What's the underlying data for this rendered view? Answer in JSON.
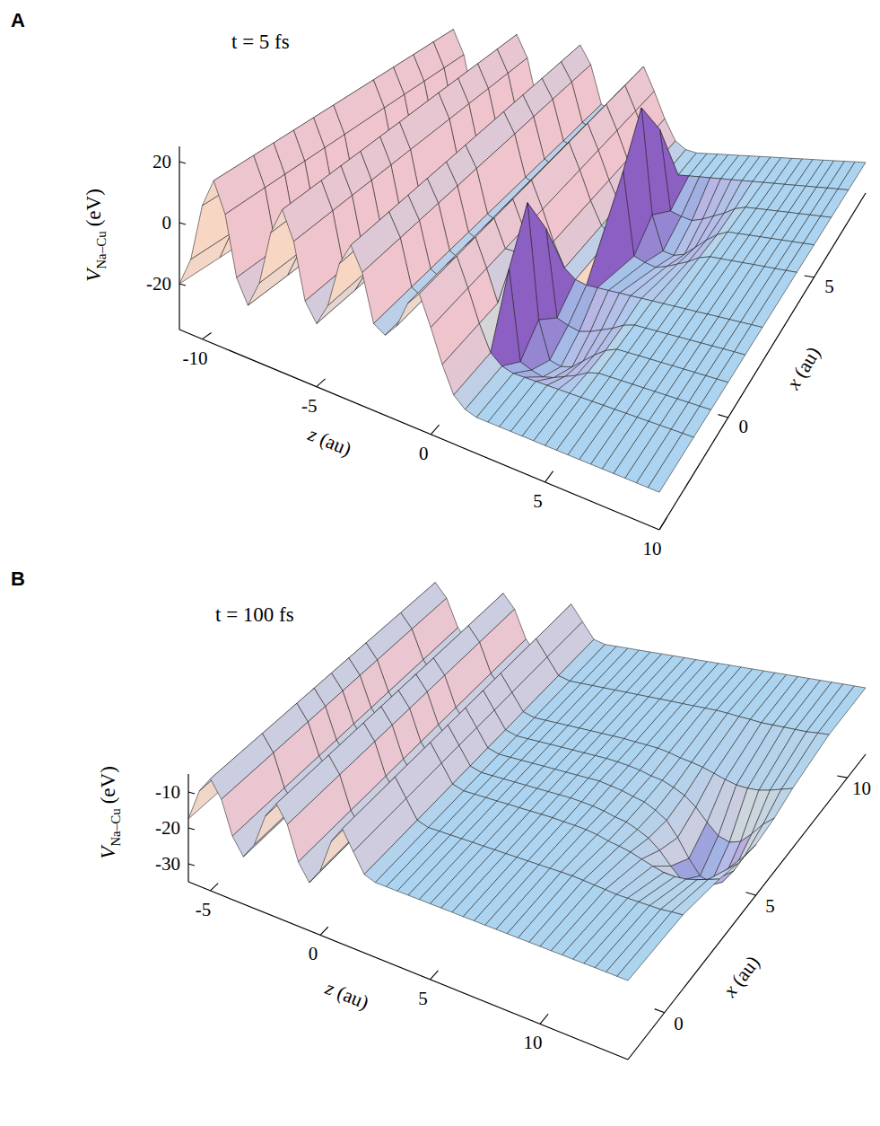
{
  "chart_data": [
    {
      "type": "surface",
      "panel": "A",
      "annotation": "t = 5 fs",
      "z_label": "z (au)",
      "x_label": "x (au)",
      "y_label": "V",
      "y_label_subscript": "Na–Cu",
      "y_label_unit": "(eV)",
      "zlim": [
        -11,
        10
      ],
      "zticks": [
        -10,
        -5,
        0,
        5,
        10
      ],
      "xlim": [
        -4,
        8
      ],
      "xticks": [
        0,
        5
      ],
      "ylim": [
        -35,
        25
      ],
      "yticks": [
        -20,
        0,
        20
      ],
      "z": [
        -11,
        -10.5,
        -10,
        -9.5,
        -9,
        -8.5,
        -8,
        -7.5,
        -7,
        -6.5,
        -6,
        -5.5,
        -5,
        -4.5,
        -4,
        -3.5,
        -3,
        -2.5,
        -2,
        -1.5,
        -1,
        -0.5,
        0,
        0.5,
        1,
        1.5,
        2,
        2.5,
        3,
        3.5,
        4,
        4.5,
        5,
        5.5,
        6,
        6.5,
        7,
        7.5,
        8,
        8.5,
        9,
        9.5,
        10
      ],
      "x": [
        -4,
        -2,
        -1,
        0,
        1,
        2,
        4,
        5,
        6,
        7,
        8
      ],
      "values": [
        [
          -20,
          -10.5,
          8.5,
          18,
          8.5,
          -10.5,
          -18,
          -9.3,
          8.3,
          17,
          8.3,
          -9.3,
          -15,
          -7.8,
          6.8,
          14,
          6.8,
          -7.8,
          -10,
          -5.8,
          2.8,
          7,
          -2,
          -12,
          -20,
          -23,
          -24,
          -24,
          -24,
          -24,
          -24,
          -24,
          -24,
          -24,
          -24,
          -24,
          -24,
          -24,
          -24,
          -24,
          -24,
          -24,
          -24
        ],
        [
          -20,
          -10.5,
          8.5,
          18,
          8.5,
          -10.5,
          -18,
          -9.3,
          8.3,
          17,
          8.3,
          -9.3,
          -15,
          -7.8,
          6.8,
          14,
          6.8,
          -7.8,
          -10,
          -5.8,
          2.8,
          7,
          -2,
          -12,
          -20,
          -23,
          -24,
          -24,
          -24,
          -24,
          -24,
          -24,
          -24,
          -24,
          -24,
          -24,
          -24,
          -24,
          -24,
          -24,
          -24,
          -24,
          -24
        ],
        [
          -20,
          -10.5,
          8.5,
          18,
          8.5,
          -10.5,
          -18,
          -9.3,
          8.3,
          17,
          8.3,
          -9.3,
          -15,
          -7.8,
          6.8,
          14,
          6.8,
          -7.8,
          -10,
          -5.8,
          2.8,
          7,
          -2,
          -12,
          0,
          -28.5,
          -30,
          -31,
          -30,
          -28.5,
          -27,
          -25,
          -24,
          -24,
          -24,
          -24,
          -24,
          -24,
          -24,
          -24,
          -24,
          -24,
          -24
        ],
        [
          -20,
          -10.5,
          8.5,
          18,
          8.5,
          -10.5,
          -18,
          -9.3,
          8.3,
          17,
          8.3,
          -9.3,
          -15,
          -7.8,
          6.8,
          14,
          6.8,
          -7.8,
          -10,
          -5.8,
          2.8,
          7,
          -2,
          -2,
          15,
          -22,
          -34,
          -35,
          -34,
          -31,
          -28,
          -25.5,
          -24,
          -24,
          -24,
          -24,
          -24,
          -24,
          -24,
          -24,
          -24,
          -24,
          -24
        ],
        [
          -20,
          -10.5,
          8.5,
          18,
          8.5,
          -10.5,
          -18,
          -9.3,
          8.3,
          17,
          8.3,
          -9.3,
          -15,
          -7.8,
          6.8,
          14,
          6.8,
          -7.8,
          -10,
          -5.8,
          2.8,
          7,
          -2,
          -12,
          0,
          -28.5,
          -30,
          -31,
          -30,
          -28.5,
          -27,
          -25,
          -24,
          -24,
          -24,
          -24,
          -24,
          -24,
          -24,
          -24,
          -24,
          -24,
          -24
        ],
        [
          -20,
          -10.5,
          8.5,
          18,
          8.5,
          -10.5,
          -18,
          -9.3,
          8.3,
          17,
          8.3,
          -9.3,
          -15,
          -7.8,
          6.8,
          14,
          6.8,
          -7.8,
          -10,
          -5.8,
          2.8,
          7,
          -2,
          -12,
          -20,
          -23,
          -24,
          -24,
          -24,
          -24,
          -24,
          -24,
          -24,
          -24,
          -24,
          -24,
          -24,
          -24,
          -24,
          -24,
          -24,
          -24,
          -24
        ],
        [
          -20,
          -10.5,
          8.5,
          18,
          8.5,
          -10.5,
          -18,
          -9.3,
          8.3,
          17,
          8.3,
          -9.3,
          -15,
          -7.8,
          6.8,
          14,
          6.8,
          -7.8,
          -10,
          -5.8,
          2.8,
          7,
          -2,
          -12,
          -20,
          -23,
          0,
          -28.5,
          -30,
          -31,
          -30,
          -28.5,
          -27,
          -25,
          -24,
          -24,
          -24,
          -24,
          -24,
          -24,
          -24,
          -24,
          -24
        ],
        [
          -20,
          -10.5,
          8.5,
          18,
          8.5,
          -10.5,
          -18,
          -9.3,
          8.3,
          17,
          8.3,
          -9.3,
          -15,
          -7.8,
          6.8,
          14,
          6.8,
          -7.8,
          -10,
          -5.8,
          2.8,
          7,
          -2,
          -12,
          -20,
          -15,
          15,
          -22,
          -34,
          -35,
          -34,
          -31,
          -28,
          -25.5,
          -24,
          -24,
          -24,
          -24,
          -24,
          -24,
          -24,
          -24,
          -24
        ],
        [
          -20,
          -10.5,
          8.5,
          18,
          8.5,
          -10.5,
          -18,
          -9.3,
          8.3,
          17,
          8.3,
          -9.3,
          -15,
          -7.8,
          6.8,
          14,
          6.8,
          -7.8,
          -10,
          -5.8,
          2.8,
          7,
          -2,
          -12,
          -20,
          -23,
          0,
          -28.5,
          -30,
          -31,
          -30,
          -28.5,
          -27,
          -25,
          -24,
          -24,
          -24,
          -24,
          -24,
          -24,
          -24,
          -24,
          -24
        ],
        [
          -20,
          -10.5,
          8.5,
          18,
          8.5,
          -10.5,
          -18,
          -9.3,
          8.3,
          17,
          8.3,
          -9.3,
          -15,
          -7.8,
          6.8,
          14,
          6.8,
          -7.8,
          -10,
          -5.8,
          2.8,
          7,
          -2,
          -12,
          -20,
          -23,
          -24,
          -24,
          -24,
          -24,
          -24,
          -24,
          -24,
          -24,
          -24,
          -24,
          -24,
          -24,
          -24,
          -24,
          -24,
          -24,
          -24
        ],
        [
          -20,
          -10.5,
          8.5,
          18,
          8.5,
          -10.5,
          -18,
          -9.3,
          8.3,
          17,
          8.3,
          -9.3,
          -15,
          -7.8,
          6.8,
          14,
          6.8,
          -7.8,
          -10,
          -5.8,
          2.8,
          7,
          -2,
          -12,
          -20,
          -23,
          -24,
          -24,
          -24,
          -24,
          -24,
          -24,
          -24,
          -24,
          -24,
          -24,
          -24,
          -24,
          -24,
          -24,
          -24,
          -24,
          -24
        ]
      ]
    },
    {
      "type": "surface",
      "panel": "B",
      "annotation": "t = 100 fs",
      "z_label": "z (au)",
      "x_label": "x (au)",
      "y_label": "V",
      "y_label_subscript": "Na–Cu",
      "y_label_unit": "(eV)",
      "zlim": [
        -6,
        14
      ],
      "zticks": [
        -5,
        0,
        5,
        10
      ],
      "xlim": [
        -2,
        11
      ],
      "xticks": [
        0,
        5,
        10
      ],
      "ylim": [
        -35,
        -5
      ],
      "yticks": [
        -30,
        -20,
        -10
      ],
      "z": [
        -6,
        -5.5,
        -5,
        -4.5,
        -4,
        -3.5,
        -3,
        -2.5,
        -2,
        -1.5,
        -1,
        -0.5,
        0,
        0.5,
        1,
        1.5,
        2,
        2.5,
        3,
        3.5,
        4,
        4.5,
        5,
        5.5,
        6,
        6.5,
        7,
        7.5,
        8,
        8.5,
        9,
        9.5,
        10,
        10.5,
        11,
        11.5,
        12,
        12.5,
        13,
        13.5,
        14
      ],
      "x": [
        -2,
        1,
        3,
        4,
        5,
        6,
        7,
        9,
        11
      ],
      "values": [
        [
          -17.5,
          -8.5,
          -4,
          -8.5,
          -17.5,
          -22,
          -17.5,
          -8.5,
          -4,
          -8.5,
          -17.5,
          -22,
          -17.5,
          -8.5,
          -4,
          -9,
          -14,
          -15,
          -15,
          -15,
          -15,
          -15,
          -15,
          -15,
          -15,
          -15,
          -15,
          -15,
          -15,
          -15,
          -15,
          -15,
          -15,
          -15,
          -15,
          -15,
          -15,
          -15,
          -15,
          -15,
          -15
        ],
        [
          -17.5,
          -8.5,
          -4,
          -8.5,
          -17.5,
          -22,
          -17.5,
          -8.5,
          -4,
          -8.5,
          -17.5,
          -22,
          -17.5,
          -8.5,
          -4,
          -9,
          -14,
          -15,
          -15,
          -15,
          -15,
          -15,
          -15,
          -15,
          -15,
          -15,
          -15,
          -15,
          -15,
          -15,
          -15,
          -15.2,
          -15.5,
          -15.7,
          -16,
          -16,
          -16,
          -16,
          -16,
          -15.7,
          -15.5
        ],
        [
          -17.5,
          -8.5,
          -4,
          -8.5,
          -17.5,
          -22,
          -17.5,
          -8.5,
          -4,
          -8.5,
          -17.5,
          -22,
          -17.5,
          -8.5,
          -4,
          -9,
          -14,
          -15,
          -15,
          -15,
          -15,
          -15,
          -15,
          -15,
          -15,
          -15,
          -15.2,
          -15.3,
          -15.5,
          -16,
          -16.8,
          -17.3,
          -18,
          -19,
          -20,
          -20.8,
          -21,
          -20.8,
          -20,
          -19,
          -18
        ],
        [
          -17.5,
          -8.5,
          -4,
          -8.5,
          -17.5,
          -22,
          -17.5,
          -8.5,
          -4,
          -8.5,
          -17.5,
          -22,
          -17.5,
          -8.5,
          -4,
          -9,
          -14,
          -15,
          -15,
          -15,
          -15,
          -15,
          -15,
          -15,
          -15,
          -15,
          -15.2,
          -15.5,
          -16,
          -16.8,
          -17.3,
          -18.5,
          -20,
          -22.5,
          -26,
          -29,
          -30,
          -29,
          -26,
          -22.5,
          -20
        ],
        [
          -17.5,
          -8.5,
          -4,
          -8.5,
          -17.5,
          -22,
          -17.5,
          -8.5,
          -4,
          -8.5,
          -17.5,
          -22,
          -17.5,
          -8.5,
          -4,
          -9,
          -14,
          -15,
          -15,
          -15,
          -15,
          -15,
          -15,
          -15,
          -15,
          -15,
          -15,
          -15.5,
          -16,
          -16.8,
          -17.5,
          -19,
          -21,
          -25,
          -30,
          -34,
          -35,
          -34,
          -30,
          -25,
          -21
        ],
        [
          -17.5,
          -8.5,
          -4,
          -8.5,
          -17.5,
          -22,
          -17.5,
          -8.5,
          -4,
          -8.5,
          -17.5,
          -22,
          -17.5,
          -8.5,
          -4,
          -9,
          -14,
          -15,
          -15,
          -15,
          -15,
          -15,
          -15,
          -15,
          -15,
          -15,
          -15.2,
          -15.5,
          -16,
          -16.8,
          -17.3,
          -18.5,
          -20,
          -22.5,
          -26,
          -29,
          -30,
          -29,
          -26,
          -22.5,
          -20
        ],
        [
          -17.5,
          -8.5,
          -4,
          -8.5,
          -17.5,
          -22,
          -17.5,
          -8.5,
          -4,
          -8.5,
          -17.5,
          -22,
          -17.5,
          -8.5,
          -4,
          -9,
          -14,
          -15,
          -15,
          -15,
          -15,
          -15,
          -15,
          -15,
          -15,
          -15,
          -15.2,
          -15.3,
          -15.5,
          -16,
          -16.8,
          -17.3,
          -18,
          -19,
          -20,
          -20.8,
          -21,
          -20.8,
          -20,
          -19,
          -18
        ],
        [
          -17.5,
          -8.5,
          -4,
          -8.5,
          -17.5,
          -22,
          -17.5,
          -8.5,
          -4,
          -8.5,
          -17.5,
          -22,
          -17.5,
          -8.5,
          -4,
          -9,
          -14,
          -15,
          -15,
          -15,
          -15,
          -15,
          -15,
          -15,
          -15,
          -15,
          -15,
          -15,
          -15,
          -15,
          -15,
          -15.2,
          -15.5,
          -15.7,
          -16,
          -16,
          -16,
          -16,
          -16,
          -15.7,
          -15.5
        ],
        [
          -17.5,
          -8.5,
          -4,
          -8.5,
          -17.5,
          -22,
          -17.5,
          -8.5,
          -4,
          -8.5,
          -17.5,
          -22,
          -17.5,
          -8.5,
          -4,
          -9,
          -14,
          -15,
          -15,
          -15,
          -15,
          -15,
          -15,
          -15,
          -15,
          -15,
          -15,
          -15,
          -15,
          -15,
          -15,
          -15,
          -15,
          -15,
          -15,
          -15,
          -15,
          -15,
          -15,
          -15,
          -15
        ]
      ]
    }
  ]
}
